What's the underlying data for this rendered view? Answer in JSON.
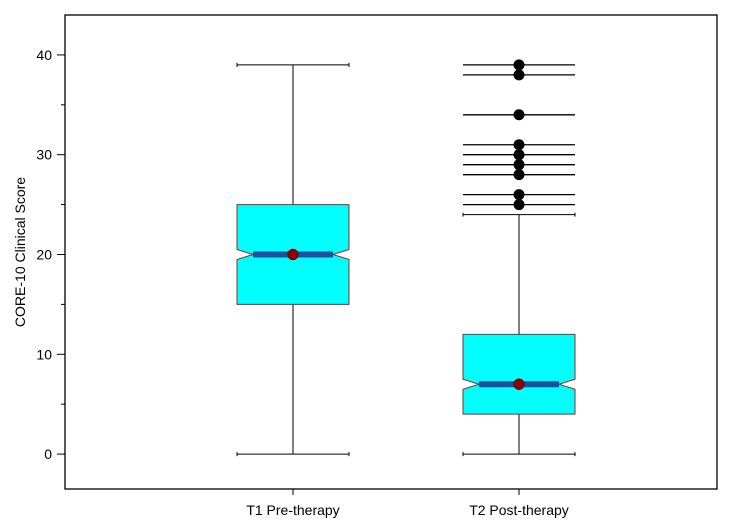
{
  "chart_data": {
    "type": "box",
    "title": "",
    "xlabel": "",
    "ylabel": "CORE-10 Clinical Score",
    "ylim": [
      -3.5,
      44
    ],
    "yticks_major": [
      0,
      10,
      20,
      30,
      40
    ],
    "yticks_minor": [
      5,
      15,
      25,
      35
    ],
    "categories": [
      "T1 Pre-therapy",
      "T2 Post-therapy"
    ],
    "boxes": [
      {
        "category": "T1 Pre-therapy",
        "min": 0,
        "q1": 15,
        "median": 20,
        "q3": 25,
        "max": 39,
        "notch_low": 19.5,
        "notch_high": 20.5,
        "mean": 20,
        "outliers": []
      },
      {
        "category": "T2 Post-therapy",
        "min": 0,
        "q1": 4,
        "median": 7,
        "q3": 12,
        "max": 24,
        "notch_low": 6.5,
        "notch_high": 7.5,
        "mean": 7,
        "outliers": [
          25,
          26,
          28,
          29,
          30,
          31,
          34,
          38,
          39
        ]
      }
    ],
    "colors": {
      "box_fill": "#00FFFF",
      "box_edge": "#8B2E2E",
      "notch_band": "#1F4FA0",
      "mean_marker": "#8B0000",
      "outlier_marker": "#000000",
      "whisker": "#000000",
      "axis": "#000000"
    },
    "grid": false
  }
}
